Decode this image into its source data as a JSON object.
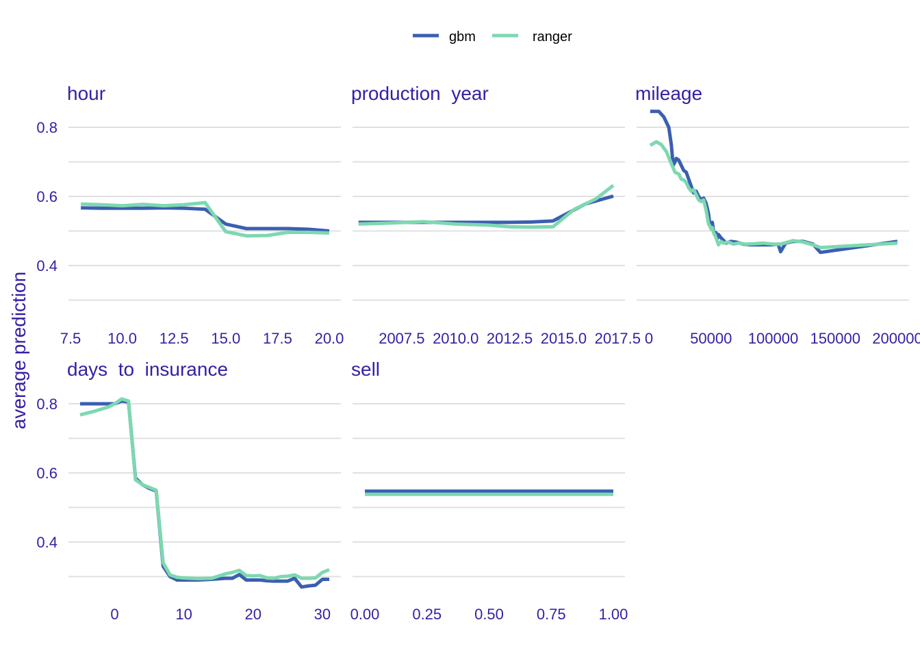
{
  "chart_data": {
    "type": "line",
    "ylabel": "average prediction",
    "legend": {
      "position": "top",
      "items": [
        {
          "name": "gbm",
          "color": "#3b5fb0"
        },
        {
          "name": "ranger",
          "color": "#7dd8b0"
        }
      ]
    },
    "ylim": [
      0.25,
      0.87
    ],
    "y_ticks": [
      0.4,
      0.6,
      0.8
    ],
    "y_tick_labels": [
      "0.4",
      "0.6",
      "0.8"
    ],
    "grid": true,
    "panels": [
      {
        "title": "hour",
        "xlim": [
          7.5,
          20.0
        ],
        "x_ticks": [
          7.5,
          10.0,
          12.5,
          15.0,
          17.5,
          20.0
        ],
        "x_tick_labels": [
          "7.5",
          "10.0",
          "12.5",
          "15.0",
          "17.5",
          "20.0"
        ],
        "series": [
          {
            "name": "gbm",
            "x": [
              8,
              9,
              10,
              11,
              12,
              13,
              14,
              15,
              16,
              17,
              18,
              19,
              20
            ],
            "y": [
              0.567,
              0.566,
              0.566,
              0.566,
              0.567,
              0.566,
              0.563,
              0.52,
              0.507,
              0.507,
              0.507,
              0.505,
              0.5
            ]
          },
          {
            "name": "ranger",
            "x": [
              8,
              9,
              10,
              11,
              12,
              13,
              14,
              15,
              16,
              17,
              18,
              19,
              20
            ],
            "y": [
              0.578,
              0.576,
              0.573,
              0.577,
              0.573,
              0.576,
              0.582,
              0.498,
              0.486,
              0.487,
              0.496,
              0.496,
              0.494
            ]
          }
        ]
      },
      {
        "title": "production  year",
        "xlim": [
          2005.0,
          2017.3
        ],
        "x_ticks": [
          2007.5,
          2010.0,
          2012.5,
          2015.0,
          2017.5
        ],
        "x_tick_labels": [
          "2007.5",
          "2010.0",
          "2012.5",
          "2015.0",
          "2017.5"
        ],
        "series": [
          {
            "name": "gbm",
            "x": [
              2005.5,
              2007,
              2008.5,
              2010,
              2011.5,
              2012.5,
              2013.5,
              2014.5,
              2016,
              2017.3
            ],
            "y": [
              0.525,
              0.525,
              0.525,
              0.525,
              0.525,
              0.525,
              0.526,
              0.529,
              0.578,
              0.601
            ]
          },
          {
            "name": "ranger",
            "x": [
              2005.5,
              2007,
              2008.5,
              2010,
              2011.5,
              2012.5,
              2013.5,
              2014.5,
              2015.5,
              2016.5,
              2017.3
            ],
            "y": [
              0.52,
              0.523,
              0.527,
              0.52,
              0.517,
              0.512,
              0.511,
              0.512,
              0.563,
              0.593,
              0.632
            ]
          }
        ]
      },
      {
        "title": "mileage",
        "xlim": [
          0,
          200000
        ],
        "x_ticks": [
          0,
          50000,
          100000,
          150000,
          200000
        ],
        "x_tick_labels": [
          "0",
          "50000",
          "100000",
          "150000",
          "200000"
        ],
        "series": [
          {
            "name": "gbm",
            "x": [
              1000,
              8000,
              12000,
              16000,
              18000,
              19500,
              21000,
              22000,
              24000,
              26000,
              28000,
              30000,
              32000,
              34000,
              36000,
              38000,
              40000,
              42000,
              44000,
              46000,
              48000,
              49000,
              50000,
              51000,
              52000,
              53000,
              54000,
              55000,
              56000,
              58000,
              60000,
              62000,
              66000,
              70000,
              76000,
              82000,
              90000,
              98000,
              104000,
              106000,
              110000,
              116000,
              124000,
              132000,
              138000,
              200000
            ],
            "y": [
              0.846,
              0.846,
              0.83,
              0.8,
              0.75,
              0.69,
              0.7,
              0.71,
              0.705,
              0.69,
              0.675,
              0.67,
              0.65,
              0.63,
              0.61,
              0.615,
              0.6,
              0.59,
              0.595,
              0.58,
              0.55,
              0.52,
              0.51,
              0.525,
              0.5,
              0.488,
              0.495,
              0.478,
              0.49,
              0.48,
              0.473,
              0.465,
              0.47,
              0.468,
              0.462,
              0.46,
              0.46,
              0.46,
              0.462,
              0.44,
              0.465,
              0.47,
              0.47,
              0.462,
              0.438,
              0.47
            ]
          },
          {
            "name": "ranger",
            "x": [
              1000,
              6000,
              10000,
              14000,
              18000,
              21000,
              22000,
              24000,
              26000,
              28000,
              30000,
              32000,
              34000,
              36000,
              38000,
              40000,
              42000,
              44000,
              46000,
              48000,
              49000,
              50000,
              51000,
              52000,
              53000,
              54000,
              56000,
              58000,
              60000,
              64000,
              68000,
              72000,
              78000,
              84000,
              92000,
              100000,
              106000,
              110000,
              116000,
              124000,
              132000,
              138000,
              200000
            ],
            "y": [
              0.748,
              0.758,
              0.75,
              0.73,
              0.695,
              0.67,
              0.668,
              0.665,
              0.65,
              0.648,
              0.64,
              0.625,
              0.615,
              0.62,
              0.605,
              0.59,
              0.585,
              0.59,
              0.56,
              0.52,
              0.515,
              0.505,
              0.51,
              0.495,
              0.49,
              0.48,
              0.46,
              0.47,
              0.465,
              0.468,
              0.462,
              0.465,
              0.462,
              0.463,
              0.465,
              0.462,
              0.462,
              0.466,
              0.472,
              0.468,
              0.46,
              0.452,
              0.465
            ]
          }
        ]
      },
      {
        "title": "days  to  insurance",
        "xlim": [
          -5,
          31
        ],
        "x_ticks": [
          0,
          10,
          20,
          30
        ],
        "x_tick_labels": [
          "0",
          "10",
          "20",
          "30"
        ],
        "series": [
          {
            "name": "gbm",
            "x": [
              -5,
              -3,
              -1,
              0,
              1,
              2,
              3,
              4,
              5,
              6,
              7,
              8,
              9,
              10,
              12,
              14,
              16,
              17,
              18,
              19,
              20,
              21,
              22,
              23,
              24,
              25,
              26,
              27,
              28,
              29,
              30,
              31
            ],
            "y": [
              0.8,
              0.8,
              0.8,
              0.8,
              0.808,
              0.805,
              0.585,
              0.566,
              0.555,
              0.548,
              0.33,
              0.3,
              0.29,
              0.29,
              0.29,
              0.292,
              0.295,
              0.295,
              0.306,
              0.29,
              0.29,
              0.29,
              0.288,
              0.287,
              0.287,
              0.287,
              0.295,
              0.27,
              0.273,
              0.275,
              0.292,
              0.292
            ]
          },
          {
            "name": "ranger",
            "x": [
              -5,
              -3,
              -1,
              0,
              1,
              2,
              3,
              4,
              5,
              6,
              7,
              8,
              9,
              10,
              12,
              14,
              16,
              17,
              18,
              19,
              20,
              21,
              22,
              23,
              24,
              25,
              26,
              27,
              28,
              29,
              30,
              31
            ],
            "y": [
              0.768,
              0.778,
              0.79,
              0.8,
              0.814,
              0.808,
              0.58,
              0.566,
              0.558,
              0.55,
              0.34,
              0.305,
              0.298,
              0.296,
              0.294,
              0.295,
              0.308,
              0.312,
              0.318,
              0.303,
              0.302,
              0.303,
              0.296,
              0.295,
              0.3,
              0.301,
              0.305,
              0.295,
              0.295,
              0.296,
              0.312,
              0.32
            ]
          }
        ]
      },
      {
        "title": "sell",
        "xlim": [
          0,
          1
        ],
        "x_ticks": [
          0.0,
          0.25,
          0.5,
          0.75,
          1.0
        ],
        "x_tick_labels": [
          "0.00",
          "0.25",
          "0.50",
          "0.75",
          "1.00"
        ],
        "series": [
          {
            "name": "gbm",
            "x": [
              0,
              1
            ],
            "y": [
              0.547,
              0.547
            ]
          },
          {
            "name": "ranger",
            "x": [
              0,
              1
            ],
            "y": [
              0.538,
              0.538
            ]
          }
        ]
      }
    ]
  }
}
